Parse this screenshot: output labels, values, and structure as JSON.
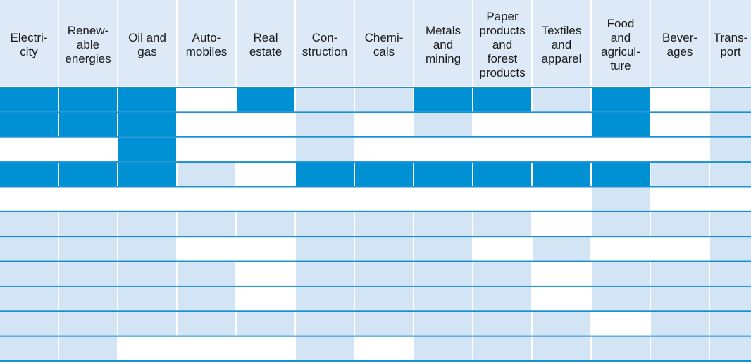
{
  "chart_data": {
    "type": "heatmap",
    "title": "",
    "legend": "none",
    "grid": true,
    "colors": {
      "header_bg": "#dde9f7",
      "high": "#0091d5",
      "medium": "#d3e4f5",
      "none": "#ffffff",
      "line": "#1a8fd3"
    },
    "levels": [
      "none",
      "medium",
      "high"
    ],
    "columns": [
      {
        "lines": [
          "Electri-",
          "city"
        ]
      },
      {
        "lines": [
          "Renew-",
          "able",
          "energies"
        ]
      },
      {
        "lines": [
          "Oil and",
          "gas"
        ]
      },
      {
        "lines": [
          "Auto-",
          "mobiles"
        ]
      },
      {
        "lines": [
          "Real",
          "estate"
        ]
      },
      {
        "lines": [
          "Con-",
          "struction"
        ]
      },
      {
        "lines": [
          "Chemi-",
          "cals"
        ]
      },
      {
        "lines": [
          "Metals",
          "and",
          "mining"
        ]
      },
      {
        "lines": [
          "Paper",
          "products",
          "and",
          "forest",
          "products"
        ]
      },
      {
        "lines": [
          "Textiles",
          "and",
          "apparel"
        ]
      },
      {
        "lines": [
          "Food",
          "and",
          "agricul-",
          "ture"
        ]
      },
      {
        "lines": [
          "Bever-",
          "ages"
        ]
      },
      {
        "lines": [
          "Trans-",
          "port"
        ]
      }
    ],
    "rows": [
      [
        2,
        2,
        2,
        0,
        2,
        1,
        1,
        2,
        2,
        1,
        2,
        0,
        1
      ],
      [
        2,
        2,
        2,
        0,
        0,
        1,
        0,
        1,
        0,
        0,
        2,
        0,
        1
      ],
      [
        0,
        0,
        2,
        0,
        0,
        1,
        0,
        0,
        0,
        0,
        0,
        0,
        1
      ],
      [
        2,
        2,
        2,
        1,
        0,
        2,
        2,
        2,
        2,
        2,
        2,
        1,
        1
      ],
      [
        0,
        0,
        0,
        0,
        0,
        0,
        0,
        0,
        0,
        0,
        1,
        0,
        0
      ],
      [
        1,
        1,
        1,
        1,
        1,
        1,
        1,
        1,
        1,
        0,
        1,
        1,
        1
      ],
      [
        1,
        1,
        1,
        0,
        0,
        1,
        1,
        1,
        0,
        1,
        0,
        0,
        1
      ],
      [
        1,
        1,
        1,
        1,
        0,
        1,
        1,
        1,
        1,
        0,
        1,
        1,
        1
      ],
      [
        1,
        1,
        1,
        1,
        0,
        1,
        1,
        1,
        1,
        0,
        1,
        1,
        1
      ],
      [
        1,
        1,
        1,
        1,
        1,
        1,
        1,
        1,
        1,
        1,
        0,
        1,
        1
      ],
      [
        1,
        1,
        0,
        0,
        0,
        1,
        0,
        1,
        1,
        1,
        1,
        1,
        1
      ]
    ]
  }
}
